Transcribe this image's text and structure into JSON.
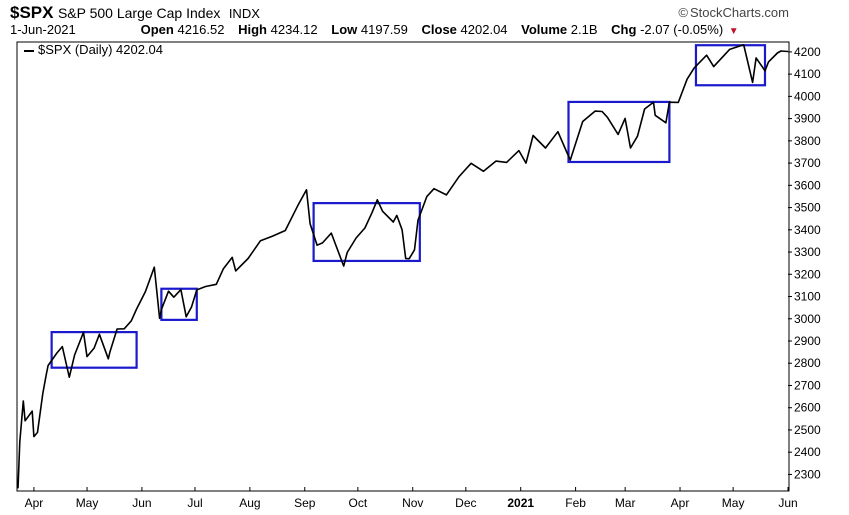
{
  "header": {
    "symbol": "$SPX",
    "name": "S&P 500 Large Cap Index",
    "exchange": "INDX",
    "credit": "StockCharts.com",
    "date": "1-Jun-2021",
    "open_label": "Open",
    "open_value": "4216.52",
    "high_label": "High",
    "high_value": "4234.12",
    "low_label": "Low",
    "low_value": "4197.59",
    "close_label": "Close",
    "close_value": "4202.04",
    "volume_label": "Volume",
    "volume_value": "2.1B",
    "chg_label": "Chg",
    "chg_value": "-2.07 (-0.05%)"
  },
  "legend": {
    "label": "$SPX (Daily) 4202.04"
  },
  "colors": {
    "line": "#000000",
    "box": "#1a1acc",
    "down": "#c0102a",
    "grid": "#d8d8d8",
    "axis": "#000000"
  },
  "chart_data": {
    "type": "line",
    "title": "$SPX S&P 500 Large Cap Index",
    "xlabel": "",
    "ylabel": "",
    "y_tick_labels": [
      "2300",
      "2400",
      "2500",
      "2600",
      "2700",
      "2800",
      "2900",
      "3000",
      "3100",
      "3200",
      "3300",
      "3400",
      "3500",
      "3600",
      "3700",
      "3800",
      "3900",
      "4000",
      "4100",
      "4200"
    ],
    "ylim": [
      2230,
      4240
    ],
    "x_tick_labels": [
      "Apr",
      "May",
      "Jun",
      "Jul",
      "Aug",
      "Sep",
      "Oct",
      "Nov",
      "Dec",
      "2021",
      "Feb",
      "Mar",
      "Apr",
      "May",
      "Jun"
    ],
    "x_tick_dates": [
      "2020-04-01",
      "2020-05-01",
      "2020-06-01",
      "2020-07-01",
      "2020-08-01",
      "2020-09-01",
      "2020-10-01",
      "2020-11-01",
      "2020-12-01",
      "2021-01-01",
      "2021-02-01",
      "2021-03-01",
      "2021-04-01",
      "2021-05-01",
      "2021-06-01"
    ],
    "xlim": [
      "2020-03-23",
      "2021-06-01"
    ],
    "grid": false,
    "legend_position": "top-left",
    "series": [
      {
        "name": "$SPX (Daily)",
        "points": [
          [
            "2020-03-23",
            2237
          ],
          [
            "2020-03-24",
            2447
          ],
          [
            "2020-03-26",
            2630
          ],
          [
            "2020-03-27",
            2541
          ],
          [
            "2020-03-31",
            2585
          ],
          [
            "2020-04-01",
            2470
          ],
          [
            "2020-04-03",
            2489
          ],
          [
            "2020-04-06",
            2664
          ],
          [
            "2020-04-08",
            2750
          ],
          [
            "2020-04-09",
            2790
          ],
          [
            "2020-04-14",
            2846
          ],
          [
            "2020-04-17",
            2875
          ],
          [
            "2020-04-21",
            2737
          ],
          [
            "2020-04-24",
            2837
          ],
          [
            "2020-04-29",
            2939
          ],
          [
            "2020-05-01",
            2830
          ],
          [
            "2020-05-05",
            2868
          ],
          [
            "2020-05-08",
            2930
          ],
          [
            "2020-05-13",
            2820
          ],
          [
            "2020-05-14",
            2852
          ],
          [
            "2020-05-18",
            2954
          ],
          [
            "2020-05-22",
            2955
          ],
          [
            "2020-05-26",
            2991
          ],
          [
            "2020-05-29",
            3044
          ],
          [
            "2020-06-03",
            3122
          ],
          [
            "2020-06-08",
            3232
          ],
          [
            "2020-06-11",
            3002
          ],
          [
            "2020-06-12",
            3041
          ],
          [
            "2020-06-16",
            3124
          ],
          [
            "2020-06-19",
            3097
          ],
          [
            "2020-06-23",
            3131
          ],
          [
            "2020-06-26",
            3009
          ],
          [
            "2020-06-29",
            3053
          ],
          [
            "2020-07-02",
            3130
          ],
          [
            "2020-07-07",
            3145
          ],
          [
            "2020-07-13",
            3155
          ],
          [
            "2020-07-17",
            3224
          ],
          [
            "2020-07-22",
            3276
          ],
          [
            "2020-07-24",
            3215
          ],
          [
            "2020-07-31",
            3271
          ],
          [
            "2020-08-07",
            3351
          ],
          [
            "2020-08-14",
            3372
          ],
          [
            "2020-08-21",
            3397
          ],
          [
            "2020-08-28",
            3508
          ],
          [
            "2020-09-02",
            3580
          ],
          [
            "2020-09-04",
            3427
          ],
          [
            "2020-09-08",
            3331
          ],
          [
            "2020-09-11",
            3341
          ],
          [
            "2020-09-16",
            3385
          ],
          [
            "2020-09-23",
            3237
          ],
          [
            "2020-09-25",
            3298
          ],
          [
            "2020-09-30",
            3363
          ],
          [
            "2020-10-05",
            3408
          ],
          [
            "2020-10-09",
            3477
          ],
          [
            "2020-10-12",
            3535
          ],
          [
            "2020-10-15",
            3483
          ],
          [
            "2020-10-21",
            3435
          ],
          [
            "2020-10-23",
            3465
          ],
          [
            "2020-10-26",
            3400
          ],
          [
            "2020-10-28",
            3271
          ],
          [
            "2020-10-30",
            3270
          ],
          [
            "2020-11-02",
            3310
          ],
          [
            "2020-11-04",
            3443
          ],
          [
            "2020-11-09",
            3550
          ],
          [
            "2020-11-13",
            3585
          ],
          [
            "2020-11-20",
            3557
          ],
          [
            "2020-11-27",
            3638
          ],
          [
            "2020-12-04",
            3699
          ],
          [
            "2020-12-11",
            3663
          ],
          [
            "2020-12-18",
            3709
          ],
          [
            "2020-12-24",
            3703
          ],
          [
            "2020-12-31",
            3756
          ],
          [
            "2021-01-04",
            3700
          ],
          [
            "2021-01-08",
            3824
          ],
          [
            "2021-01-15",
            3768
          ],
          [
            "2021-01-22",
            3841
          ],
          [
            "2021-01-27",
            3750
          ],
          [
            "2021-01-29",
            3714
          ],
          [
            "2021-02-05",
            3887
          ],
          [
            "2021-02-12",
            3934
          ],
          [
            "2021-02-16",
            3932
          ],
          [
            "2021-02-19",
            3906
          ],
          [
            "2021-02-25",
            3829
          ],
          [
            "2021-03-01",
            3901
          ],
          [
            "2021-03-04",
            3768
          ],
          [
            "2021-03-08",
            3821
          ],
          [
            "2021-03-12",
            3943
          ],
          [
            "2021-03-17",
            3974
          ],
          [
            "2021-03-18",
            3915
          ],
          [
            "2021-03-24",
            3881
          ],
          [
            "2021-03-26",
            3974
          ],
          [
            "2021-03-31",
            3973
          ],
          [
            "2021-04-05",
            4077
          ],
          [
            "2021-04-09",
            4128
          ],
          [
            "2021-04-16",
            4185
          ],
          [
            "2021-04-20",
            4134
          ],
          [
            "2021-04-29",
            4211
          ],
          [
            "2021-05-07",
            4232
          ],
          [
            "2021-05-12",
            4063
          ],
          [
            "2021-05-14",
            4173
          ],
          [
            "2021-05-19",
            4115
          ],
          [
            "2021-05-21",
            4155
          ],
          [
            "2021-05-26",
            4195
          ],
          [
            "2021-05-28",
            4204
          ],
          [
            "2021-06-01",
            4202
          ]
        ]
      }
    ],
    "highlight_boxes": [
      {
        "x_start": "2020-04-11",
        "x_end": "2020-05-29",
        "y_low": 2780,
        "y_high": 2940
      },
      {
        "x_start": "2020-06-12",
        "x_end": "2020-07-02",
        "y_low": 2995,
        "y_high": 3135
      },
      {
        "x_start": "2020-09-06",
        "x_end": "2020-11-05",
        "y_low": 3260,
        "y_high": 3520
      },
      {
        "x_start": "2021-01-28",
        "x_end": "2021-03-26",
        "y_low": 3705,
        "y_high": 3975
      },
      {
        "x_start": "2021-04-10",
        "x_end": "2021-05-19",
        "y_low": 4050,
        "y_high": 4230
      }
    ]
  }
}
